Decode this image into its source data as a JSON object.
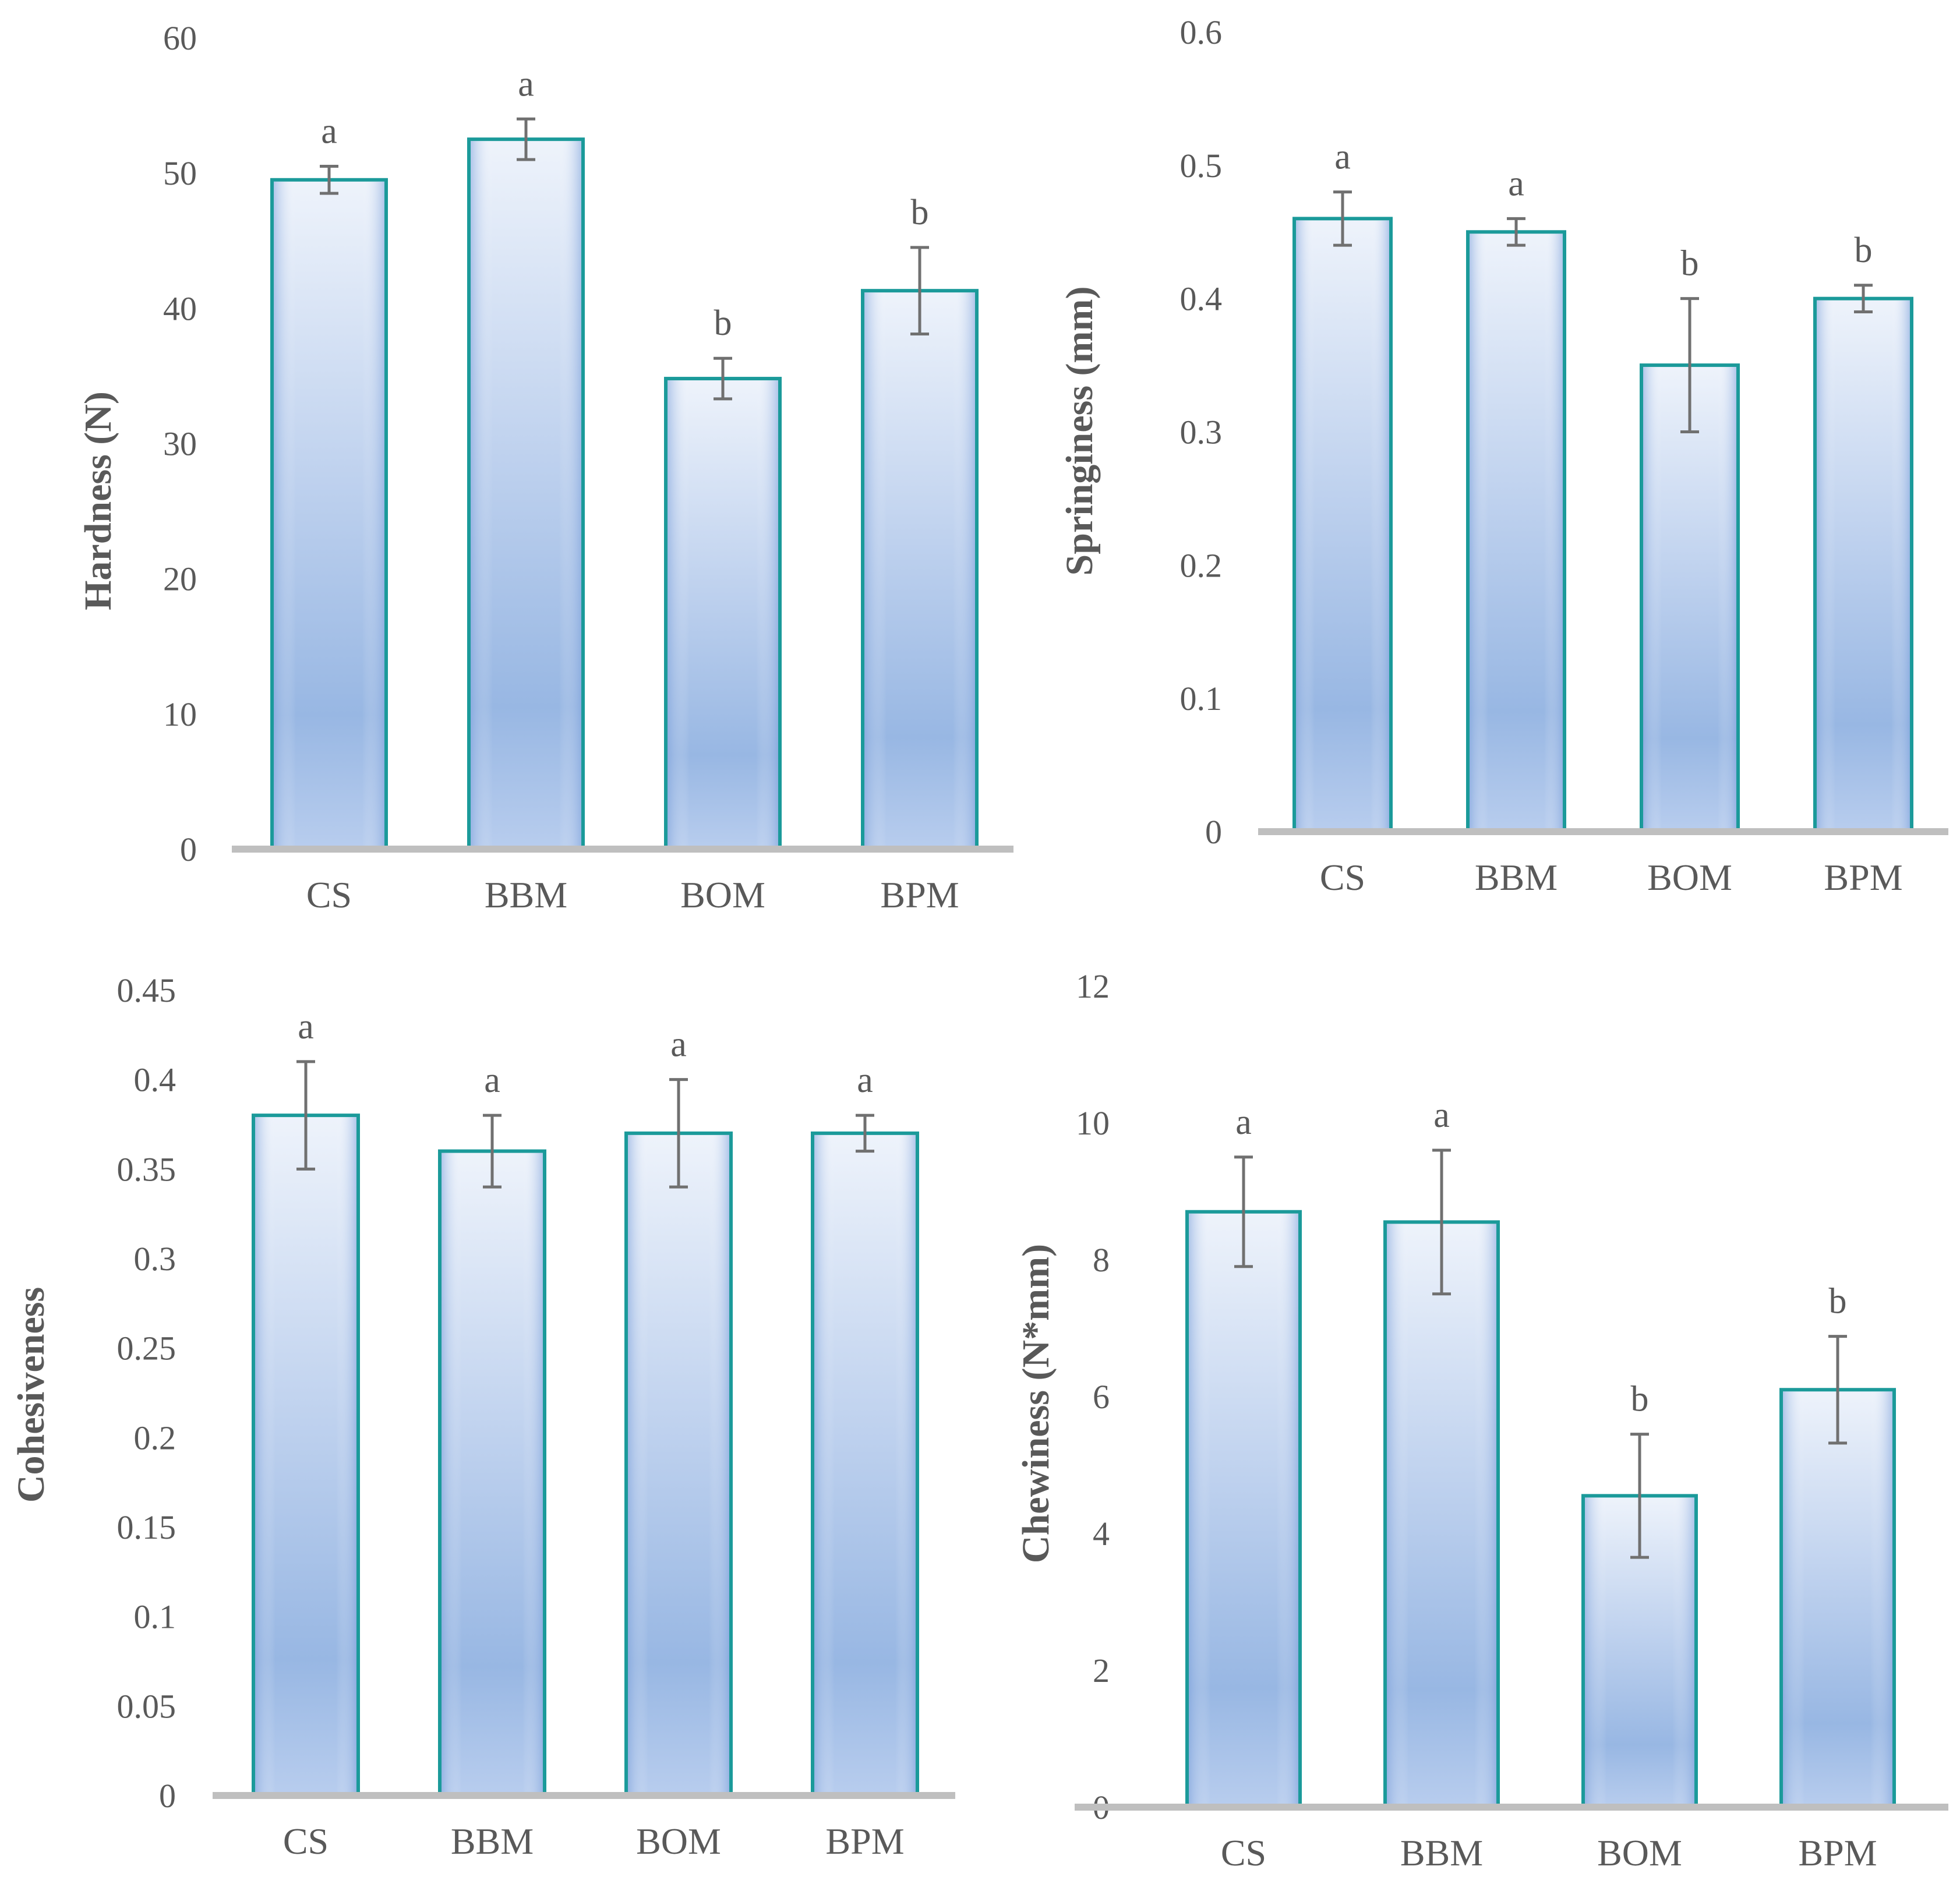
{
  "colors": {
    "bar_outline": "#1b9a9a",
    "bar_fill_light": "#eef3fb",
    "bar_fill_dark": "#98b7e3",
    "error_bar": "#707070",
    "axis_line": "#bfbfbf",
    "text": "#595959"
  },
  "chart_data": [
    {
      "type": "bar",
      "categories": [
        "CS",
        "BBM",
        "BOM",
        "BPM"
      ],
      "values": [
        49.5,
        52.5,
        34.8,
        41.3
      ],
      "errors": [
        1.0,
        1.5,
        1.5,
        3.2
      ],
      "significance": [
        "a",
        "a",
        "b",
        "b"
      ],
      "ylabel": "Hardness (N)",
      "ylim": [
        0,
        60
      ],
      "yticks": [
        0,
        10,
        20,
        30,
        40,
        50,
        60
      ],
      "ytick_labels": [
        "0",
        "10",
        "20",
        "30",
        "40",
        "50",
        "60"
      ],
      "grid": false
    },
    {
      "type": "bar",
      "categories": [
        "CS",
        "BBM",
        "BOM",
        "BPM"
      ],
      "values": [
        0.46,
        0.45,
        0.35,
        0.4
      ],
      "errors": [
        0.02,
        0.01,
        0.05,
        0.01
      ],
      "significance": [
        "a",
        "a",
        "b",
        "b"
      ],
      "ylabel": "Springiness (mm)",
      "ylim": [
        0,
        0.6
      ],
      "yticks": [
        0,
        0.1,
        0.2,
        0.3,
        0.4,
        0.5,
        0.6
      ],
      "ytick_labels": [
        "0",
        "0.1",
        "0.2",
        "0.3",
        "0.4",
        "0.5",
        "0.6"
      ],
      "grid": false
    },
    {
      "type": "bar",
      "categories": [
        "CS",
        "BBM",
        "BOM",
        "BPM"
      ],
      "values": [
        0.38,
        0.36,
        0.37,
        0.37
      ],
      "errors": [
        0.03,
        0.02,
        0.03,
        0.01
      ],
      "significance": [
        "a",
        "a",
        "a",
        "a"
      ],
      "ylabel": "Cohesiveness",
      "ylim": [
        0,
        0.45
      ],
      "yticks": [
        0,
        0.05,
        0.1,
        0.15,
        0.2,
        0.25,
        0.3,
        0.35,
        0.4,
        0.45
      ],
      "ytick_labels": [
        "0",
        "0.05",
        "0.1",
        "0.15",
        "0.2",
        "0.25",
        "0.3",
        "0.35",
        "0.4",
        "0.45"
      ],
      "grid": false
    },
    {
      "type": "bar",
      "categories": [
        "CS",
        "BBM",
        "BOM",
        "BPM"
      ],
      "values": [
        8.7,
        8.55,
        4.55,
        6.1
      ],
      "errors": [
        0.8,
        1.05,
        0.9,
        0.78
      ],
      "significance": [
        "a",
        "a",
        "b",
        "b"
      ],
      "ylabel": "Chewiness (N*mm)",
      "ylim": [
        0,
        12
      ],
      "yticks": [
        0,
        2,
        4,
        6,
        8,
        10,
        12
      ],
      "ytick_labels": [
        "0",
        "2",
        "4",
        "6",
        "8",
        "10",
        "12"
      ],
      "grid": false
    }
  ]
}
